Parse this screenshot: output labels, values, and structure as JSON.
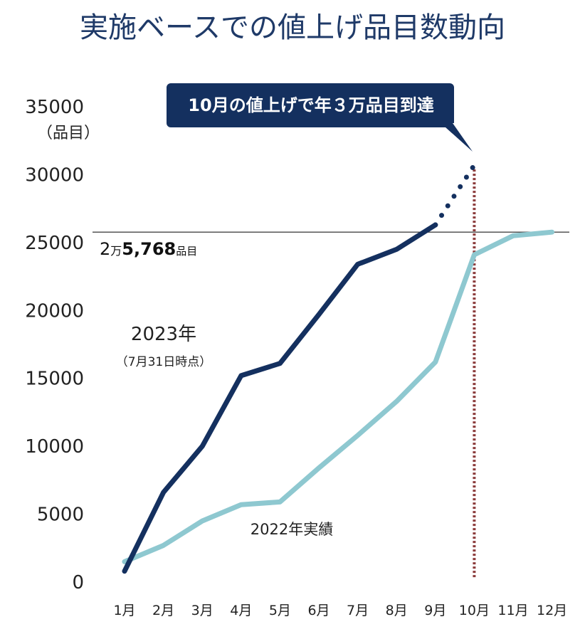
{
  "chart_data": {
    "type": "line",
    "title": "実施ベースでの値上げ品目数動向",
    "ylabel": "（品目）",
    "ylim": [
      0,
      35000
    ],
    "yticks": [
      "0",
      "5000",
      "10000",
      "15000",
      "20000",
      "25000",
      "30000",
      "35000"
    ],
    "categories": [
      "1月",
      "2月",
      "3月",
      "4月",
      "5月",
      "6月",
      "7月",
      "8月",
      "9月",
      "10月",
      "11月",
      "12月"
    ],
    "grid": false,
    "series": [
      {
        "name": "2023年",
        "sublabel": "（7月31日時点）",
        "color": "#14305f",
        "values": [
          800,
          6600,
          10000,
          15200,
          16100,
          19700,
          23400,
          24500,
          26300,
          30700,
          null,
          null
        ],
        "projected_from_index": 8
      },
      {
        "name": "2022年実績",
        "color": "#8ec8d0",
        "values": [
          1500,
          2700,
          4500,
          5700,
          5900,
          8400,
          10800,
          13300,
          16200,
          24100,
          25500,
          25768
        ]
      }
    ],
    "reference_line": {
      "value": 25768,
      "label_parts": [
        "2",
        "万",
        "5,768",
        "品目"
      ],
      "color": "#555555"
    },
    "marker_line": {
      "category": "10月",
      "color": "#8b3a3a"
    },
    "callout": {
      "text": "10月の値上げで年３万品目到達",
      "color": "#14305f"
    }
  }
}
